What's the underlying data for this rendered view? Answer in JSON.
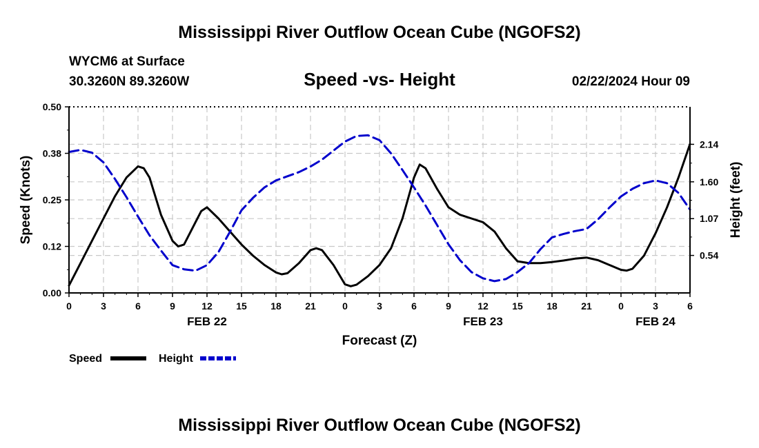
{
  "header": {
    "title": "Mississippi River Outflow Ocean Cube (NGOFS2)",
    "station": "WYCM6 at Surface",
    "coords": "30.3260N  89.3260W",
    "subtitle": "Speed -vs- Height",
    "datetime": "02/22/2024 Hour 09",
    "footer_title": "Mississippi River Outflow Ocean Cube (NGOFS2)"
  },
  "legend": {
    "speed_label": "Speed",
    "height_label": "Height"
  },
  "colors": {
    "speed": "#000000",
    "height": "#0000cc",
    "grid": "#c8c8c8"
  },
  "chart_data": {
    "type": "line",
    "title": "Speed -vs- Height",
    "xlabel": "Forecast (Z)",
    "ylabel": "Speed (Knots)",
    "y2label": "Height (feet)",
    "xlim": [
      0,
      54
    ],
    "ylim": [
      0,
      0.5
    ],
    "y2lim": [
      0,
      2.68
    ],
    "x_ticks": [
      0,
      3,
      6,
      9,
      12,
      15,
      18,
      21,
      24,
      27,
      30,
      33,
      36,
      39,
      42,
      45,
      48,
      51,
      54
    ],
    "x_tick_labels": [
      "0",
      "3",
      "6",
      "9",
      "12",
      "15",
      "18",
      "21",
      "0",
      "3",
      "6",
      "9",
      "12",
      "15",
      "18",
      "21",
      "0",
      "3",
      "6"
    ],
    "date_labels": [
      {
        "x": 12,
        "label": "FEB 22"
      },
      {
        "x": 36,
        "label": "FEB 23"
      },
      {
        "x": 51,
        "label": "FEB 24"
      }
    ],
    "y_ticks": [
      0.0,
      0.125,
      0.25,
      0.375,
      0.5
    ],
    "y_tick_labels": [
      "0.00",
      "0.12",
      "0.25",
      "0.38",
      "0.50"
    ],
    "y2_ticks": [
      0.54,
      1.07,
      1.6,
      2.14
    ],
    "y2_tick_labels": [
      "0.54",
      "1.07",
      "1.60",
      "2.14"
    ],
    "grid": true,
    "series": [
      {
        "name": "Speed",
        "axis": "left",
        "style": "solid",
        "x": [
          0,
          1,
          2,
          3,
          4,
          5,
          6,
          6.5,
          7,
          8,
          9,
          9.5,
          10,
          11,
          11.5,
          12,
          13,
          14,
          15,
          16,
          17,
          18,
          18.5,
          19,
          20,
          21,
          21.5,
          22,
          23,
          24,
          24.5,
          25,
          26,
          27,
          28,
          29,
          30,
          30.5,
          31,
          32,
          33,
          34,
          35,
          36,
          37,
          38,
          39,
          40,
          41,
          42,
          43,
          44,
          45,
          46,
          47,
          48,
          48.5,
          49,
          50,
          51,
          52,
          53,
          54
        ],
        "values": [
          0.02,
          0.08,
          0.14,
          0.2,
          0.26,
          0.31,
          0.34,
          0.335,
          0.31,
          0.21,
          0.14,
          0.125,
          0.13,
          0.19,
          0.22,
          0.23,
          0.2,
          0.165,
          0.13,
          0.1,
          0.075,
          0.055,
          0.05,
          0.053,
          0.08,
          0.115,
          0.12,
          0.115,
          0.075,
          0.023,
          0.018,
          0.022,
          0.045,
          0.075,
          0.12,
          0.2,
          0.31,
          0.345,
          0.335,
          0.28,
          0.23,
          0.21,
          0.2,
          0.19,
          0.165,
          0.12,
          0.085,
          0.08,
          0.08,
          0.083,
          0.087,
          0.092,
          0.095,
          0.088,
          0.075,
          0.062,
          0.06,
          0.065,
          0.1,
          0.16,
          0.23,
          0.31,
          0.4
        ]
      },
      {
        "name": "Height",
        "axis": "right",
        "style": "dashed",
        "x": [
          0,
          1,
          2,
          3,
          4,
          5,
          6,
          7,
          8,
          9,
          10,
          11,
          12,
          13,
          14,
          15,
          16,
          17,
          18,
          19,
          20,
          21,
          22,
          23,
          24,
          25,
          26,
          27,
          28,
          29,
          30,
          31,
          32,
          33,
          34,
          35,
          36,
          37,
          38,
          39,
          40,
          41,
          42,
          43,
          44,
          45,
          46,
          47,
          48,
          49,
          50,
          51,
          52,
          53,
          54
        ],
        "values": [
          2.03,
          2.06,
          2.02,
          1.88,
          1.64,
          1.38,
          1.1,
          0.83,
          0.61,
          0.4,
          0.34,
          0.32,
          0.4,
          0.59,
          0.88,
          1.19,
          1.37,
          1.52,
          1.62,
          1.68,
          1.74,
          1.82,
          1.92,
          2.05,
          2.18,
          2.26,
          2.27,
          2.2,
          2.01,
          1.77,
          1.52,
          1.26,
          0.98,
          0.7,
          0.47,
          0.3,
          0.21,
          0.17,
          0.2,
          0.3,
          0.43,
          0.63,
          0.8,
          0.85,
          0.89,
          0.92,
          1.06,
          1.23,
          1.39,
          1.5,
          1.58,
          1.62,
          1.58,
          1.44,
          1.2
        ]
      }
    ]
  }
}
